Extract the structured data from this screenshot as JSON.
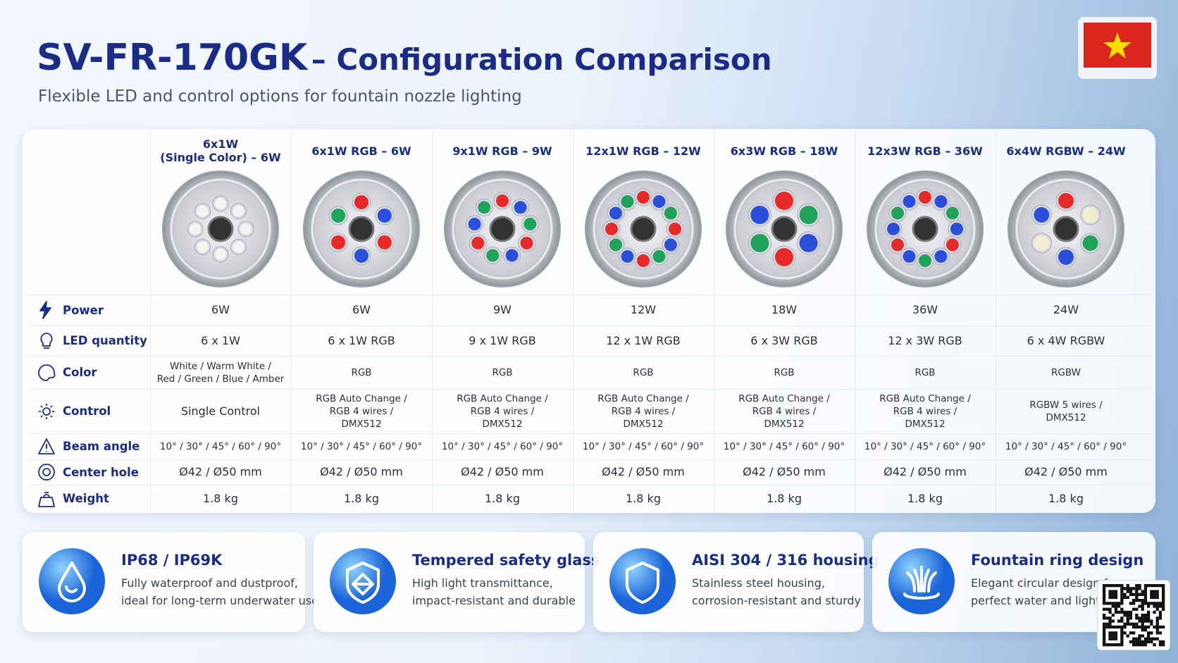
{
  "header": {
    "title_code": "SV-FR-170GK",
    "title_rest": "– Configuration Comparison",
    "subtitle": "Flexible LED and control options for fountain nozzle lighting"
  },
  "table": {
    "columns": [
      "6x1W\n(Single Color) – 6W",
      "6x1W RGB – 6W",
      "9x1W RGB – 9W",
      "12x1W RGB – 12W",
      "6x3W RGB – 18W",
      "12x3W RGB – 36W",
      "6x4W RGBW – 24W"
    ],
    "rows": [
      {
        "label": "Power",
        "cells": [
          "6W",
          "6W",
          "9W",
          "12W",
          "18W",
          "36W",
          "24W"
        ]
      },
      {
        "label": "LED quantity",
        "cells": [
          "6 x 1W",
          "6 x 1W RGB",
          "9 x 1W RGB",
          "12 x 1W RGB",
          "6 x 3W RGB",
          "12 x 3W RGB",
          "6 x 4W RGBW"
        ]
      },
      {
        "label": "Color",
        "cells": [
          "White / Warm White /\nRed / Green / Blue / Amber",
          "RGB",
          "RGB",
          "RGB",
          "RGB",
          "RGB",
          "RGBW"
        ]
      },
      {
        "label": "Control",
        "cells": [
          "Single Control",
          "RGB Auto Change /\nRGB 4 wires /\nDMX512",
          "RGB Auto Change /\nRGB 4 wires /\nDMX512",
          "RGB Auto Change /\nRGB 4 wires /\nDMX512",
          "RGB Auto Change /\nRGB 4 wires /\nDMX512",
          "RGB Auto Change /\nRGB 4 wires /\nDMX512",
          "RGBW 5 wires /\nDMX512"
        ]
      },
      {
        "label": "Beam angle",
        "cells": [
          "10° / 30° / 45° / 60° / 90°",
          "10° / 30° / 45° / 60° / 90°",
          "10° / 30° / 45° / 60° / 90°",
          "10° / 30° / 45° / 60° / 90°",
          "10° / 30° / 45° / 60° / 90°",
          "10° / 30° / 45° / 60° / 90°",
          "10° / 30° / 45° / 60° / 90°"
        ]
      },
      {
        "label": "Center hole",
        "cells": [
          "Ø42 / Ø50 mm",
          "Ø42 / Ø50 mm",
          "Ø42 / Ø50 mm",
          "Ø42 / Ø50 mm",
          "Ø42 / Ø50 mm",
          "Ø42 / Ø50 mm",
          "Ø42 / Ø50 mm"
        ]
      },
      {
        "label": "Weight",
        "cells": [
          "1.8 kg",
          "1.8 kg",
          "1.8 kg",
          "1.8 kg",
          "1.8 kg",
          "1.8 kg",
          "1.8 kg"
        ]
      }
    ]
  },
  "features": [
    {
      "title": "IP68 / IP69K",
      "text": "Fully waterproof and dustproof,\nideal for long-term underwater use"
    },
    {
      "title": "Tempered safety glass",
      "text": "High light transmittance,\nimpact-resistant and durable"
    },
    {
      "title": "AISI 304 / 316 housing",
      "text": "Stainless steel housing,\ncorrosion-resistant and sturdy"
    },
    {
      "title": "Fountain ring design",
      "text": "Elegant circular design for\nperfect water and light effects"
    }
  ]
}
